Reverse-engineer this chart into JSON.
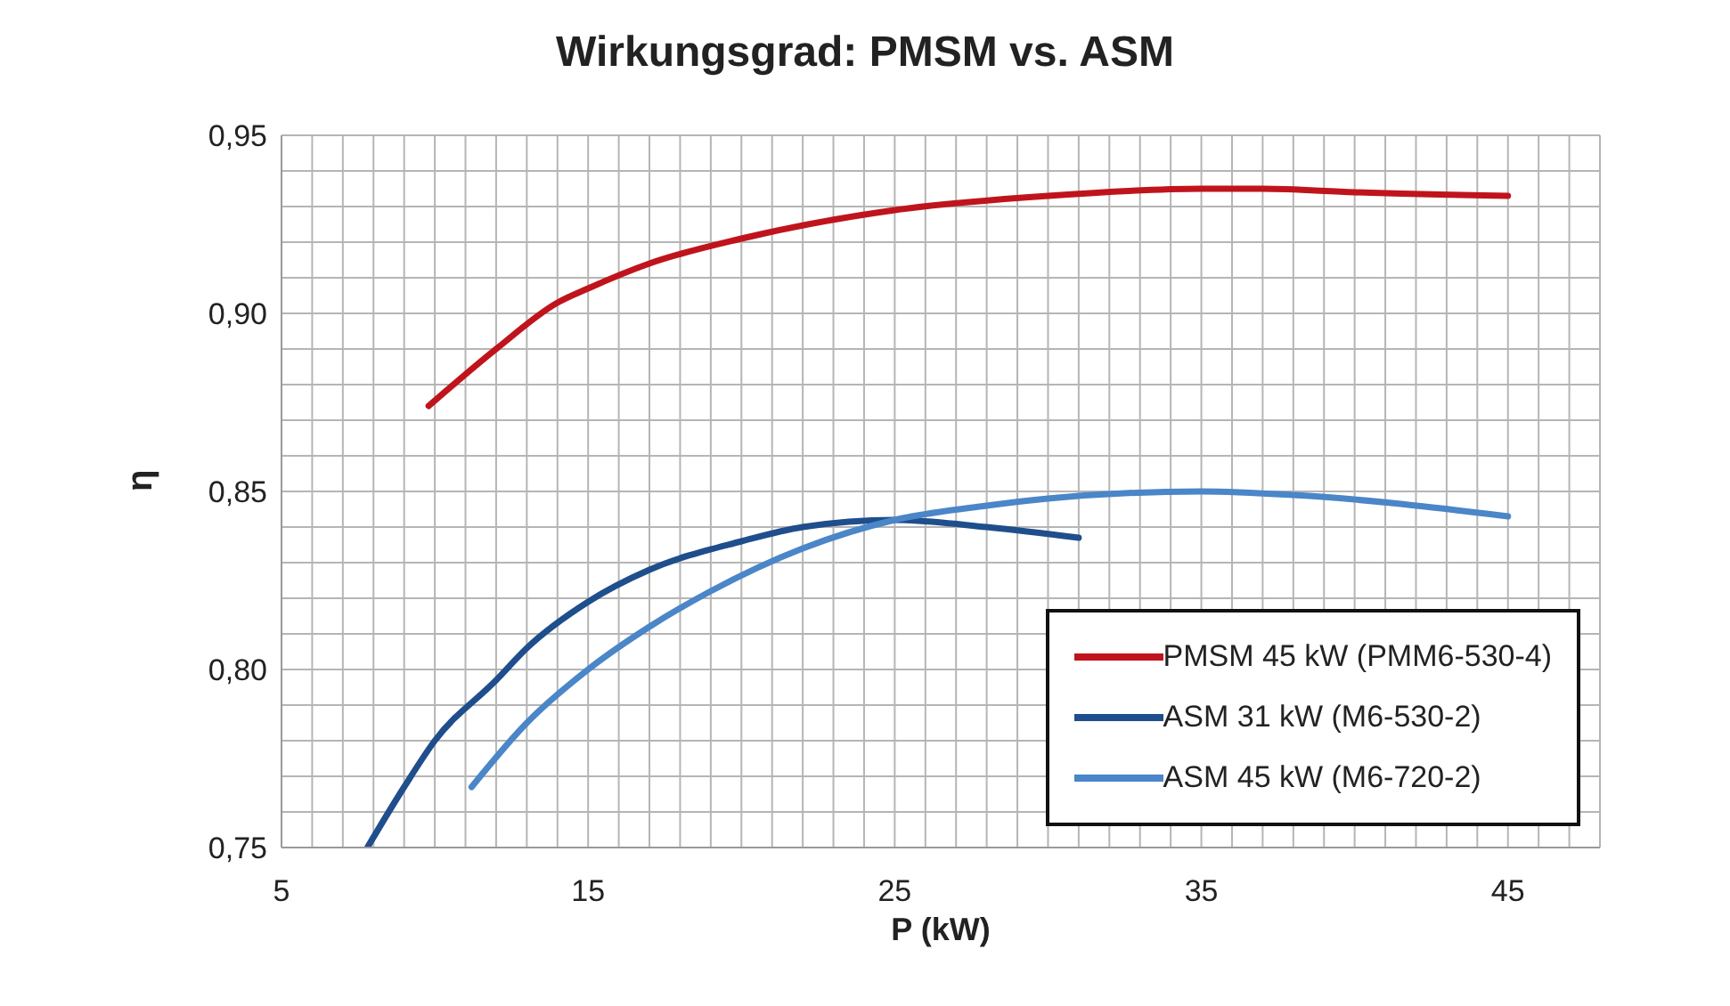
{
  "chart_data": {
    "type": "line",
    "title": "Wirkungsgrad: PMSM vs. ASM",
    "xlabel": "P (kW)",
    "ylabel": "η",
    "xlim": [
      5,
      48
    ],
    "xticks": [
      5,
      {
        "value": 6,
        "label": null
      },
      {
        "value": 7,
        "label": null
      },
      {
        "value": 8,
        "label": null
      },
      {
        "value": 9,
        "label": null
      },
      {
        "value": 10,
        "label": null
      },
      {
        "value": 11,
        "label": null
      },
      {
        "value": 12,
        "label": null
      },
      {
        "value": 13,
        "label": null
      },
      {
        "value": 14,
        "label": null
      },
      15,
      {
        "value": 16,
        "label": null
      },
      {
        "value": 17,
        "label": null
      },
      {
        "value": 18,
        "label": null
      },
      {
        "value": 19,
        "label": null
      },
      {
        "value": 20,
        "label": null
      },
      {
        "value": 21,
        "label": null
      },
      {
        "value": 22,
        "label": null
      },
      {
        "value": 23,
        "label": null
      },
      {
        "value": 24,
        "label": null
      },
      25,
      {
        "value": 26,
        "label": null
      },
      {
        "value": 27,
        "label": null
      },
      {
        "value": 28,
        "label": null
      },
      {
        "value": 29,
        "label": null
      },
      {
        "value": 30,
        "label": null
      },
      {
        "value": 31,
        "label": null
      },
      {
        "value": 32,
        "label": null
      },
      {
        "value": 33,
        "label": null
      },
      {
        "value": 34,
        "label": null
      },
      35,
      {
        "value": 36,
        "label": null
      },
      {
        "value": 37,
        "label": null
      },
      {
        "value": 38,
        "label": null
      },
      {
        "value": 39,
        "label": null
      },
      {
        "value": 40,
        "label": null
      },
      {
        "value": 41,
        "label": null
      },
      {
        "value": 42,
        "label": null
      },
      {
        "value": 43,
        "label": null
      },
      {
        "value": 44,
        "label": null
      },
      45,
      {
        "value": 46,
        "label": null
      },
      {
        "value": 47,
        "label": null
      },
      {
        "value": 48,
        "label": null
      }
    ],
    "ylim": [
      0.75,
      0.95
    ],
    "yticks": [
      {
        "value": 0.75,
        "label": "0,75"
      },
      {
        "value": 0.76,
        "label": null
      },
      {
        "value": 0.77,
        "label": null
      },
      {
        "value": 0.78,
        "label": null
      },
      {
        "value": 0.79,
        "label": null
      },
      {
        "value": 0.8,
        "label": "0,80"
      },
      {
        "value": 0.81,
        "label": null
      },
      {
        "value": 0.82,
        "label": null
      },
      {
        "value": 0.83,
        "label": null
      },
      {
        "value": 0.84,
        "label": null
      },
      {
        "value": 0.85,
        "label": "0,85"
      },
      {
        "value": 0.86,
        "label": null
      },
      {
        "value": 0.87,
        "label": null
      },
      {
        "value": 0.88,
        "label": null
      },
      {
        "value": 0.89,
        "label": null
      },
      {
        "value": 0.9,
        "label": "0,90"
      },
      {
        "value": 0.91,
        "label": null
      },
      {
        "value": 0.92,
        "label": null
      },
      {
        "value": 0.93,
        "label": null
      },
      {
        "value": 0.94,
        "label": null
      },
      {
        "value": 0.95,
        "label": "0,95"
      }
    ],
    "grid": true,
    "legend": "bottom right",
    "marker": "none",
    "line_style": "solid",
    "series": [
      {
        "name": "PMSM 45 kW (PMM6-530-4)",
        "color": "#c0141c",
        "x": [
          9.8,
          12,
          14,
          15,
          17,
          20,
          25,
          30,
          35,
          37,
          40,
          45
        ],
        "values": [
          0.874,
          0.89,
          0.903,
          0.907,
          0.914,
          0.921,
          0.929,
          0.933,
          0.935,
          0.935,
          0.934,
          0.933
        ]
      },
      {
        "name": "ASM 31 kW (M6-530-2)",
        "color": "#1f4e8c",
        "x": [
          7.8,
          9,
          10,
          12,
          13,
          15,
          17,
          20,
          22,
          25,
          28,
          31
        ],
        "values": [
          0.75,
          0.767,
          0.78,
          0.797,
          0.806,
          0.819,
          0.828,
          0.836,
          0.84,
          0.842,
          0.84,
          0.837
        ]
      },
      {
        "name": "ASM 45 kW (M6-720-2)",
        "color": "#4a86c8",
        "x": [
          11.2,
          13,
          15,
          17,
          19,
          22,
          25,
          28,
          30,
          35,
          38,
          45
        ],
        "values": [
          0.767,
          0.785,
          0.8,
          0.812,
          0.822,
          0.834,
          0.842,
          0.846,
          0.848,
          0.85,
          0.849,
          0.843
        ]
      }
    ]
  }
}
